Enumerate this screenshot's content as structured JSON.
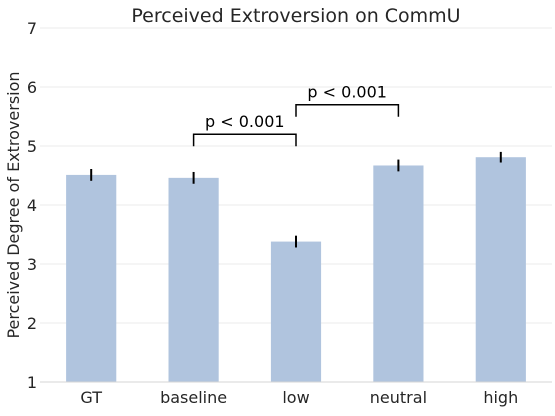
{
  "chart_data": {
    "type": "bar",
    "title": "Perceived Extroversion on CommU",
    "xlabel": "",
    "ylabel": "Perceived Degree of Extroversion",
    "categories": [
      "GT",
      "baseline",
      "low",
      "neutral",
      "high"
    ],
    "values": [
      4.51,
      4.46,
      3.38,
      4.67,
      4.81
    ],
    "errors": [
      0.1,
      0.1,
      0.1,
      0.1,
      0.09
    ],
    "ylim": [
      1,
      7
    ],
    "yticks": [
      "1",
      "2",
      "3",
      "4",
      "5",
      "6",
      "7"
    ],
    "grid": "horizontal",
    "bar_color": "#b0c4de",
    "error_color": "#000000",
    "annotations": [
      {
        "label": "p < 0.001",
        "from": "baseline",
        "to": "low",
        "y": 5.2
      },
      {
        "label": "p < 0.001",
        "from": "low",
        "to": "neutral",
        "y": 5.7
      }
    ]
  }
}
